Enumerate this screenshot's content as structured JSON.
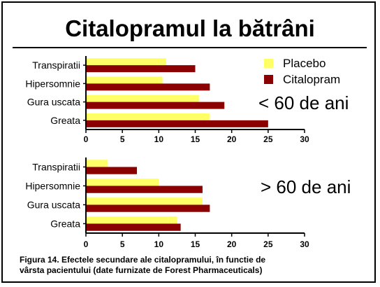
{
  "title": "Citalopramul la bătrâni",
  "colors": {
    "placebo": "#ffff66",
    "citalopram": "#8b0000"
  },
  "chart_data": [
    {
      "type": "bar",
      "orientation": "horizontal",
      "annotation": "< 60 de ani",
      "categories": [
        "Transpiratii",
        "Hipersomnie",
        "Gura uscata",
        "Greata"
      ],
      "series": [
        {
          "name": "Placebo",
          "values": [
            11,
            10.5,
            15.5,
            17
          ]
        },
        {
          "name": "Citalopram",
          "values": [
            15,
            17,
            19,
            25
          ]
        }
      ],
      "xlim": [
        0,
        30
      ],
      "xticks": [
        0,
        5,
        10,
        15,
        20,
        25,
        30
      ],
      "legend": "top-right"
    },
    {
      "type": "bar",
      "orientation": "horizontal",
      "annotation": "> 60 de ani",
      "categories": [
        "Transpiratii",
        "Hipersomnie",
        "Gura uscata",
        "Greata"
      ],
      "series": [
        {
          "name": "Placebo",
          "values": [
            3,
            10,
            16,
            12.5
          ]
        },
        {
          "name": "Citalopram",
          "values": [
            7,
            16,
            17,
            13
          ]
        }
      ],
      "xlim": [
        0,
        30
      ],
      "xticks": [
        0,
        5,
        10,
        15,
        20,
        25,
        30
      ]
    }
  ],
  "caption": {
    "line1": "Figura 14. Efectele secundare ale citalopramului, în functie de",
    "line2": "vârsta pacientului (date furnizate de Forest Pharmaceuticals)"
  }
}
